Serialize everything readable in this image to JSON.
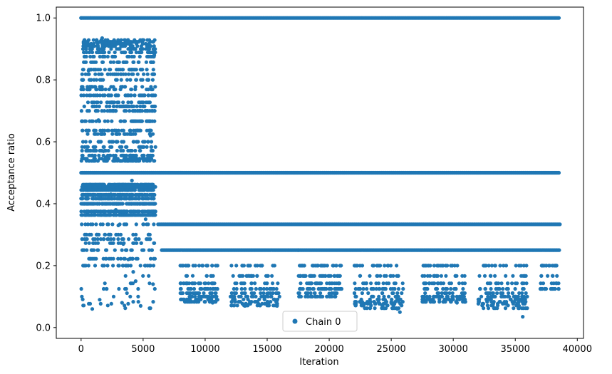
{
  "chart_data": {
    "type": "scatter",
    "xlabel": "Iteration",
    "ylabel": "Acceptance ratio",
    "xlim": [
      -2000,
      40500
    ],
    "ylim": [
      -0.035,
      1.035
    ],
    "xticks": [
      0,
      5000,
      10000,
      15000,
      20000,
      25000,
      30000,
      35000,
      40000
    ],
    "xtick_labels": [
      "0",
      "5000",
      "10000",
      "15000",
      "20000",
      "25000",
      "30000",
      "35000",
      "40000"
    ],
    "yticks": [
      0.0,
      0.2,
      0.4,
      0.6,
      0.8,
      1.0
    ],
    "ytick_labels": [
      "0.0",
      "0.2",
      "0.4",
      "0.6",
      "0.8",
      "1.0"
    ],
    "grid": false,
    "legend": {
      "position": "lower-center",
      "entries": [
        "Chain 0"
      ]
    },
    "series": [
      {
        "name": "Chain 0",
        "color": "#1f77b4",
        "marker": "circle",
        "dense_levels": [
          {
            "y": 1.0,
            "x_range": [
              0,
              38600
            ],
            "note_density": "continuous"
          },
          {
            "y": 0.5,
            "x_range": [
              0,
              38600
            ],
            "note_density": "continuous"
          },
          {
            "y": 0.3333,
            "x_range": [
              6200,
              38600
            ]
          },
          {
            "y": 0.25,
            "x_range": [
              6500,
              38600
            ]
          }
        ],
        "points": [
          {
            "x": 0,
            "y": 1.0
          },
          {
            "x": 200,
            "y": 0.92
          },
          {
            "x": 400,
            "y": 0.9
          },
          {
            "x": 600,
            "y": 0.83
          },
          {
            "x": 800,
            "y": 0.8
          },
          {
            "x": 1000,
            "y": 0.75
          },
          {
            "x": 1200,
            "y": 0.7
          },
          {
            "x": 1400,
            "y": 0.67
          },
          {
            "x": 1600,
            "y": 0.6
          },
          {
            "x": 1800,
            "y": 0.57
          },
          {
            "x": 2000,
            "y": 0.55
          },
          {
            "x": 2200,
            "y": 0.45
          },
          {
            "x": 2400,
            "y": 0.43
          },
          {
            "x": 2600,
            "y": 0.4
          },
          {
            "x": 2800,
            "y": 0.38
          },
          {
            "x": 3000,
            "y": 0.33
          },
          {
            "x": 3200,
            "y": 0.3
          },
          {
            "x": 3400,
            "y": 0.27
          },
          {
            "x": 3600,
            "y": 0.25
          },
          {
            "x": 3800,
            "y": 0.22
          },
          {
            "x": 4000,
            "y": 0.2
          },
          {
            "x": 4200,
            "y": 0.18
          },
          {
            "x": 4400,
            "y": 0.15
          },
          {
            "x": 4600,
            "y": 0.1
          },
          {
            "x": 900,
            "y": 0.06
          },
          {
            "x": 1500,
            "y": 0.09
          },
          {
            "x": 3300,
            "y": 0.08
          },
          {
            "x": 4800,
            "y": 0.07
          },
          {
            "x": 5800,
            "y": 0.14
          },
          {
            "x": 5200,
            "y": 0.35
          },
          {
            "x": 5600,
            "y": 0.62
          },
          {
            "x": 5900,
            "y": 0.88
          },
          {
            "x": 4100,
            "y": 0.475
          },
          {
            "x": 2700,
            "y": 0.925
          },
          {
            "x": 1700,
            "y": 0.935
          },
          {
            "x": 8000,
            "y": 0.2
          },
          {
            "x": 9000,
            "y": 0.167
          },
          {
            "x": 9500,
            "y": 0.143
          },
          {
            "x": 10000,
            "y": 0.125
          },
          {
            "x": 10300,
            "y": 0.1
          },
          {
            "x": 10600,
            "y": 0.08
          },
          {
            "x": 11000,
            "y": 0.09
          },
          {
            "x": 13000,
            "y": 0.2
          },
          {
            "x": 13500,
            "y": 0.167
          },
          {
            "x": 14000,
            "y": 0.143
          },
          {
            "x": 14500,
            "y": 0.125
          },
          {
            "x": 15000,
            "y": 0.11
          },
          {
            "x": 15300,
            "y": 0.1
          },
          {
            "x": 13200,
            "y": 0.07
          },
          {
            "x": 15800,
            "y": 0.07
          },
          {
            "x": 17500,
            "y": 0.25
          },
          {
            "x": 18000,
            "y": 0.2
          },
          {
            "x": 18500,
            "y": 0.167
          },
          {
            "x": 19000,
            "y": 0.143
          },
          {
            "x": 19500,
            "y": 0.125
          },
          {
            "x": 20000,
            "y": 0.11
          },
          {
            "x": 20500,
            "y": 0.1
          },
          {
            "x": 21000,
            "y": 0.125
          },
          {
            "x": 22500,
            "y": 0.167
          },
          {
            "x": 23000,
            "y": 0.143
          },
          {
            "x": 23500,
            "y": 0.125
          },
          {
            "x": 24000,
            "y": 0.1
          },
          {
            "x": 24500,
            "y": 0.09
          },
          {
            "x": 25000,
            "y": 0.08
          },
          {
            "x": 25500,
            "y": 0.06
          },
          {
            "x": 25700,
            "y": 0.05
          },
          {
            "x": 28000,
            "y": 0.2
          },
          {
            "x": 28500,
            "y": 0.167
          },
          {
            "x": 29000,
            "y": 0.143
          },
          {
            "x": 29500,
            "y": 0.125
          },
          {
            "x": 30000,
            "y": 0.1
          },
          {
            "x": 30300,
            "y": 0.08
          },
          {
            "x": 30700,
            "y": 0.111
          },
          {
            "x": 32500,
            "y": 0.2
          },
          {
            "x": 33000,
            "y": 0.167
          },
          {
            "x": 33500,
            "y": 0.143
          },
          {
            "x": 34000,
            "y": 0.125
          },
          {
            "x": 34500,
            "y": 0.1
          },
          {
            "x": 35000,
            "y": 0.09
          },
          {
            "x": 35300,
            "y": 0.07
          },
          {
            "x": 35600,
            "y": 0.035
          },
          {
            "x": 37500,
            "y": 0.2
          },
          {
            "x": 38000,
            "y": 0.167
          },
          {
            "x": 38300,
            "y": 0.143
          },
          {
            "x": 38500,
            "y": 0.125
          }
        ],
        "clusters": [
          {
            "x_range": [
              0,
              6000
            ],
            "y_range": [
              0.53,
              0.94
            ],
            "density": "high"
          },
          {
            "x_range": [
              0,
              6000
            ],
            "y_range": [
              0.36,
              0.47
            ],
            "density": "high"
          },
          {
            "x_range": [
              0,
              6000
            ],
            "y_range": [
              0.2,
              0.36
            ],
            "density": "medium"
          },
          {
            "x_range": [
              0,
              6000
            ],
            "y_range": [
              0.06,
              0.2
            ],
            "density": "low"
          },
          {
            "x_range": [
              8000,
              11000
            ],
            "y_range": [
              0.08,
              0.2
            ],
            "density": "medium"
          },
          {
            "x_range": [
              12000,
              16000
            ],
            "y_range": [
              0.07,
              0.2
            ],
            "density": "medium"
          },
          {
            "x_range": [
              17500,
              21000
            ],
            "y_range": [
              0.1,
              0.2
            ],
            "density": "medium"
          },
          {
            "x_range": [
              22000,
              26000
            ],
            "y_range": [
              0.05,
              0.2
            ],
            "density": "medium"
          },
          {
            "x_range": [
              27500,
              31000
            ],
            "y_range": [
              0.08,
              0.2
            ],
            "density": "medium"
          },
          {
            "x_range": [
              32000,
              36000
            ],
            "y_range": [
              0.035,
              0.2
            ],
            "density": "medium"
          },
          {
            "x_range": [
              37000,
              38600
            ],
            "y_range": [
              0.12,
              0.2
            ],
            "density": "low"
          }
        ]
      }
    ]
  }
}
